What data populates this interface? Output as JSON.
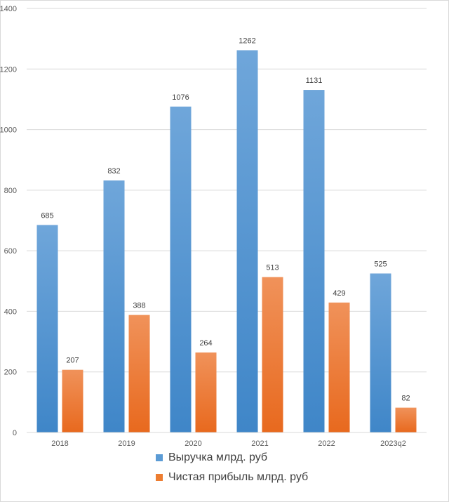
{
  "chart_data": {
    "type": "bar",
    "categories": [
      "2018",
      "2019",
      "2020",
      "2021",
      "2022",
      "2023q2"
    ],
    "series": [
      {
        "name": "Выручка млрд. руб",
        "values": [
          685,
          832,
          1076,
          1262,
          1131,
          525
        ],
        "color": "#5B9BD5"
      },
      {
        "name": "Чистая прибыль млрд. руб",
        "values": [
          207,
          388,
          264,
          513,
          429,
          82
        ],
        "color": "#ED7D31"
      }
    ],
    "ylim": [
      0,
      1400
    ],
    "yticks": [
      "0",
      "200",
      "400",
      "600",
      "800",
      "1000",
      "1200",
      "1400"
    ],
    "grid": true,
    "legend_position": "bottom"
  }
}
